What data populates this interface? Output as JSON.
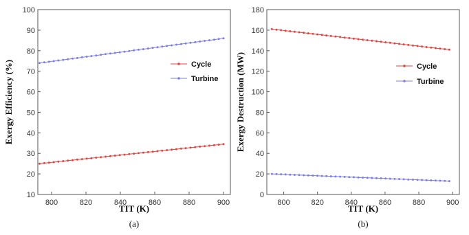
{
  "colors": {
    "cycle": "#e8413c",
    "turbine": "#7a7cf0"
  },
  "chart_data": [
    {
      "type": "line",
      "panel_label": "(a)",
      "xlabel": "TIT (K)",
      "ylabel": "Exergy Efficiency (%)",
      "xlim": [
        792,
        904
      ],
      "ylim": [
        10,
        100
      ],
      "xticks": [
        800,
        820,
        840,
        860,
        880,
        900
      ],
      "yticks": [
        10,
        20,
        30,
        40,
        50,
        60,
        70,
        80,
        90,
        100
      ],
      "grid": false,
      "legend_position": "middle-right",
      "series": [
        {
          "name": "Cycle",
          "color": "#e8413c",
          "x_start": 793,
          "x_end": 900,
          "y_start": 25.0,
          "y_end": 34.5,
          "points": 40
        },
        {
          "name": "Turbine",
          "color": "#7a7cf0",
          "x_start": 793,
          "x_end": 900,
          "y_start": 74.0,
          "y_end": 86.0,
          "points": 40
        }
      ]
    },
    {
      "type": "line",
      "panel_label": "(b)",
      "xlabel": "TIT (K)",
      "ylabel": "Exergy Destruction (MW)",
      "xlim": [
        790,
        904
      ],
      "ylim": [
        0,
        180
      ],
      "xticks": [
        800,
        820,
        840,
        860,
        880,
        900
      ],
      "yticks": [
        0,
        20,
        40,
        60,
        80,
        100,
        120,
        140,
        160,
        180
      ],
      "grid": false,
      "legend_position": "middle-right",
      "series": [
        {
          "name": "Cycle",
          "color": "#e8413c",
          "x_start": 793,
          "x_end": 898,
          "y_start": 161.0,
          "y_end": 141.0,
          "points": 40
        },
        {
          "name": "Turbine",
          "color": "#7a7cf0",
          "x_start": 793,
          "x_end": 898,
          "y_start": 20.0,
          "y_end": 13.0,
          "points": 40
        }
      ]
    }
  ]
}
